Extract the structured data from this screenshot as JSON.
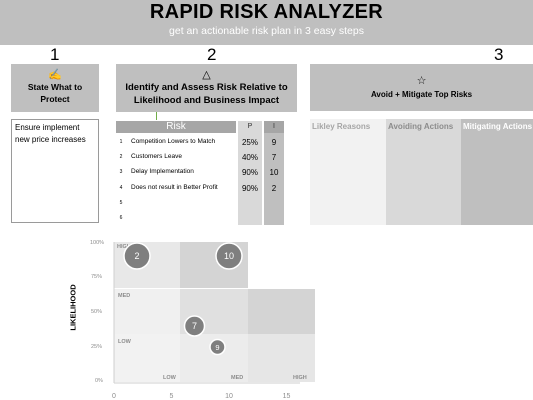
{
  "app": {
    "title": "RAPID RISK ANALYZER",
    "subtitle": "get an actionable risk plan in 3 easy steps"
  },
  "steps": [
    {
      "number": "1",
      "icon": "pen-icon",
      "icon_glyph": "✍",
      "label": "State What to Protect"
    },
    {
      "number": "2",
      "icon": "triangle-icon",
      "icon_glyph": "△",
      "label": "Identify and Assess Risk Relative to Likelihood and Business Impact"
    },
    {
      "number": "3",
      "icon": "star-icon",
      "icon_glyph": "☆",
      "label": "Avoid + Mitigate Top Risks"
    }
  ],
  "step1": {
    "line1": "Ensure implement",
    "line2": "new price increases"
  },
  "risk_table": {
    "headers": {
      "risk": "Risk",
      "p": "P",
      "i": "I"
    },
    "rows": [
      {
        "num": "1",
        "risk": "Competition Lowers to Match",
        "p": "25%",
        "i": "9"
      },
      {
        "num": "2",
        "risk": "Customers Leave",
        "p": "40%",
        "i": "7"
      },
      {
        "num": "3",
        "risk": "Delay Implementation",
        "p": "90%",
        "i": "10"
      },
      {
        "num": "4",
        "risk": "Does not result in Better Profit",
        "p": "90%",
        "i": "2"
      },
      {
        "num": "5",
        "risk": "",
        "p": "",
        "i": ""
      },
      {
        "num": "6",
        "risk": "",
        "p": "",
        "i": ""
      }
    ]
  },
  "step3": {
    "columns": [
      "Likley Reasons",
      "Avoiding Actions",
      "Mitigating Actions"
    ]
  },
  "chart_data": {
    "type": "scatter",
    "ylabel": "LIKELIHOOD",
    "xlabel": "",
    "y_ticks": [
      "100%",
      "75%",
      "50%",
      "25%",
      "0%"
    ],
    "x_ticks": [
      "0",
      "5",
      "10",
      "15"
    ],
    "xlim": [
      0,
      15
    ],
    "ylim": [
      0,
      1
    ],
    "zones_y": [
      "HIGH",
      "MED",
      "LOW"
    ],
    "zones_x": [
      "LOW",
      "MED",
      "HIGH"
    ],
    "points": [
      {
        "label": "2",
        "x": 2,
        "y": 0.9
      },
      {
        "label": "10",
        "x": 10,
        "y": 0.9
      },
      {
        "label": "7",
        "x": 7,
        "y": 0.4
      },
      {
        "label": "9",
        "x": 9,
        "y": 0.25
      }
    ]
  }
}
